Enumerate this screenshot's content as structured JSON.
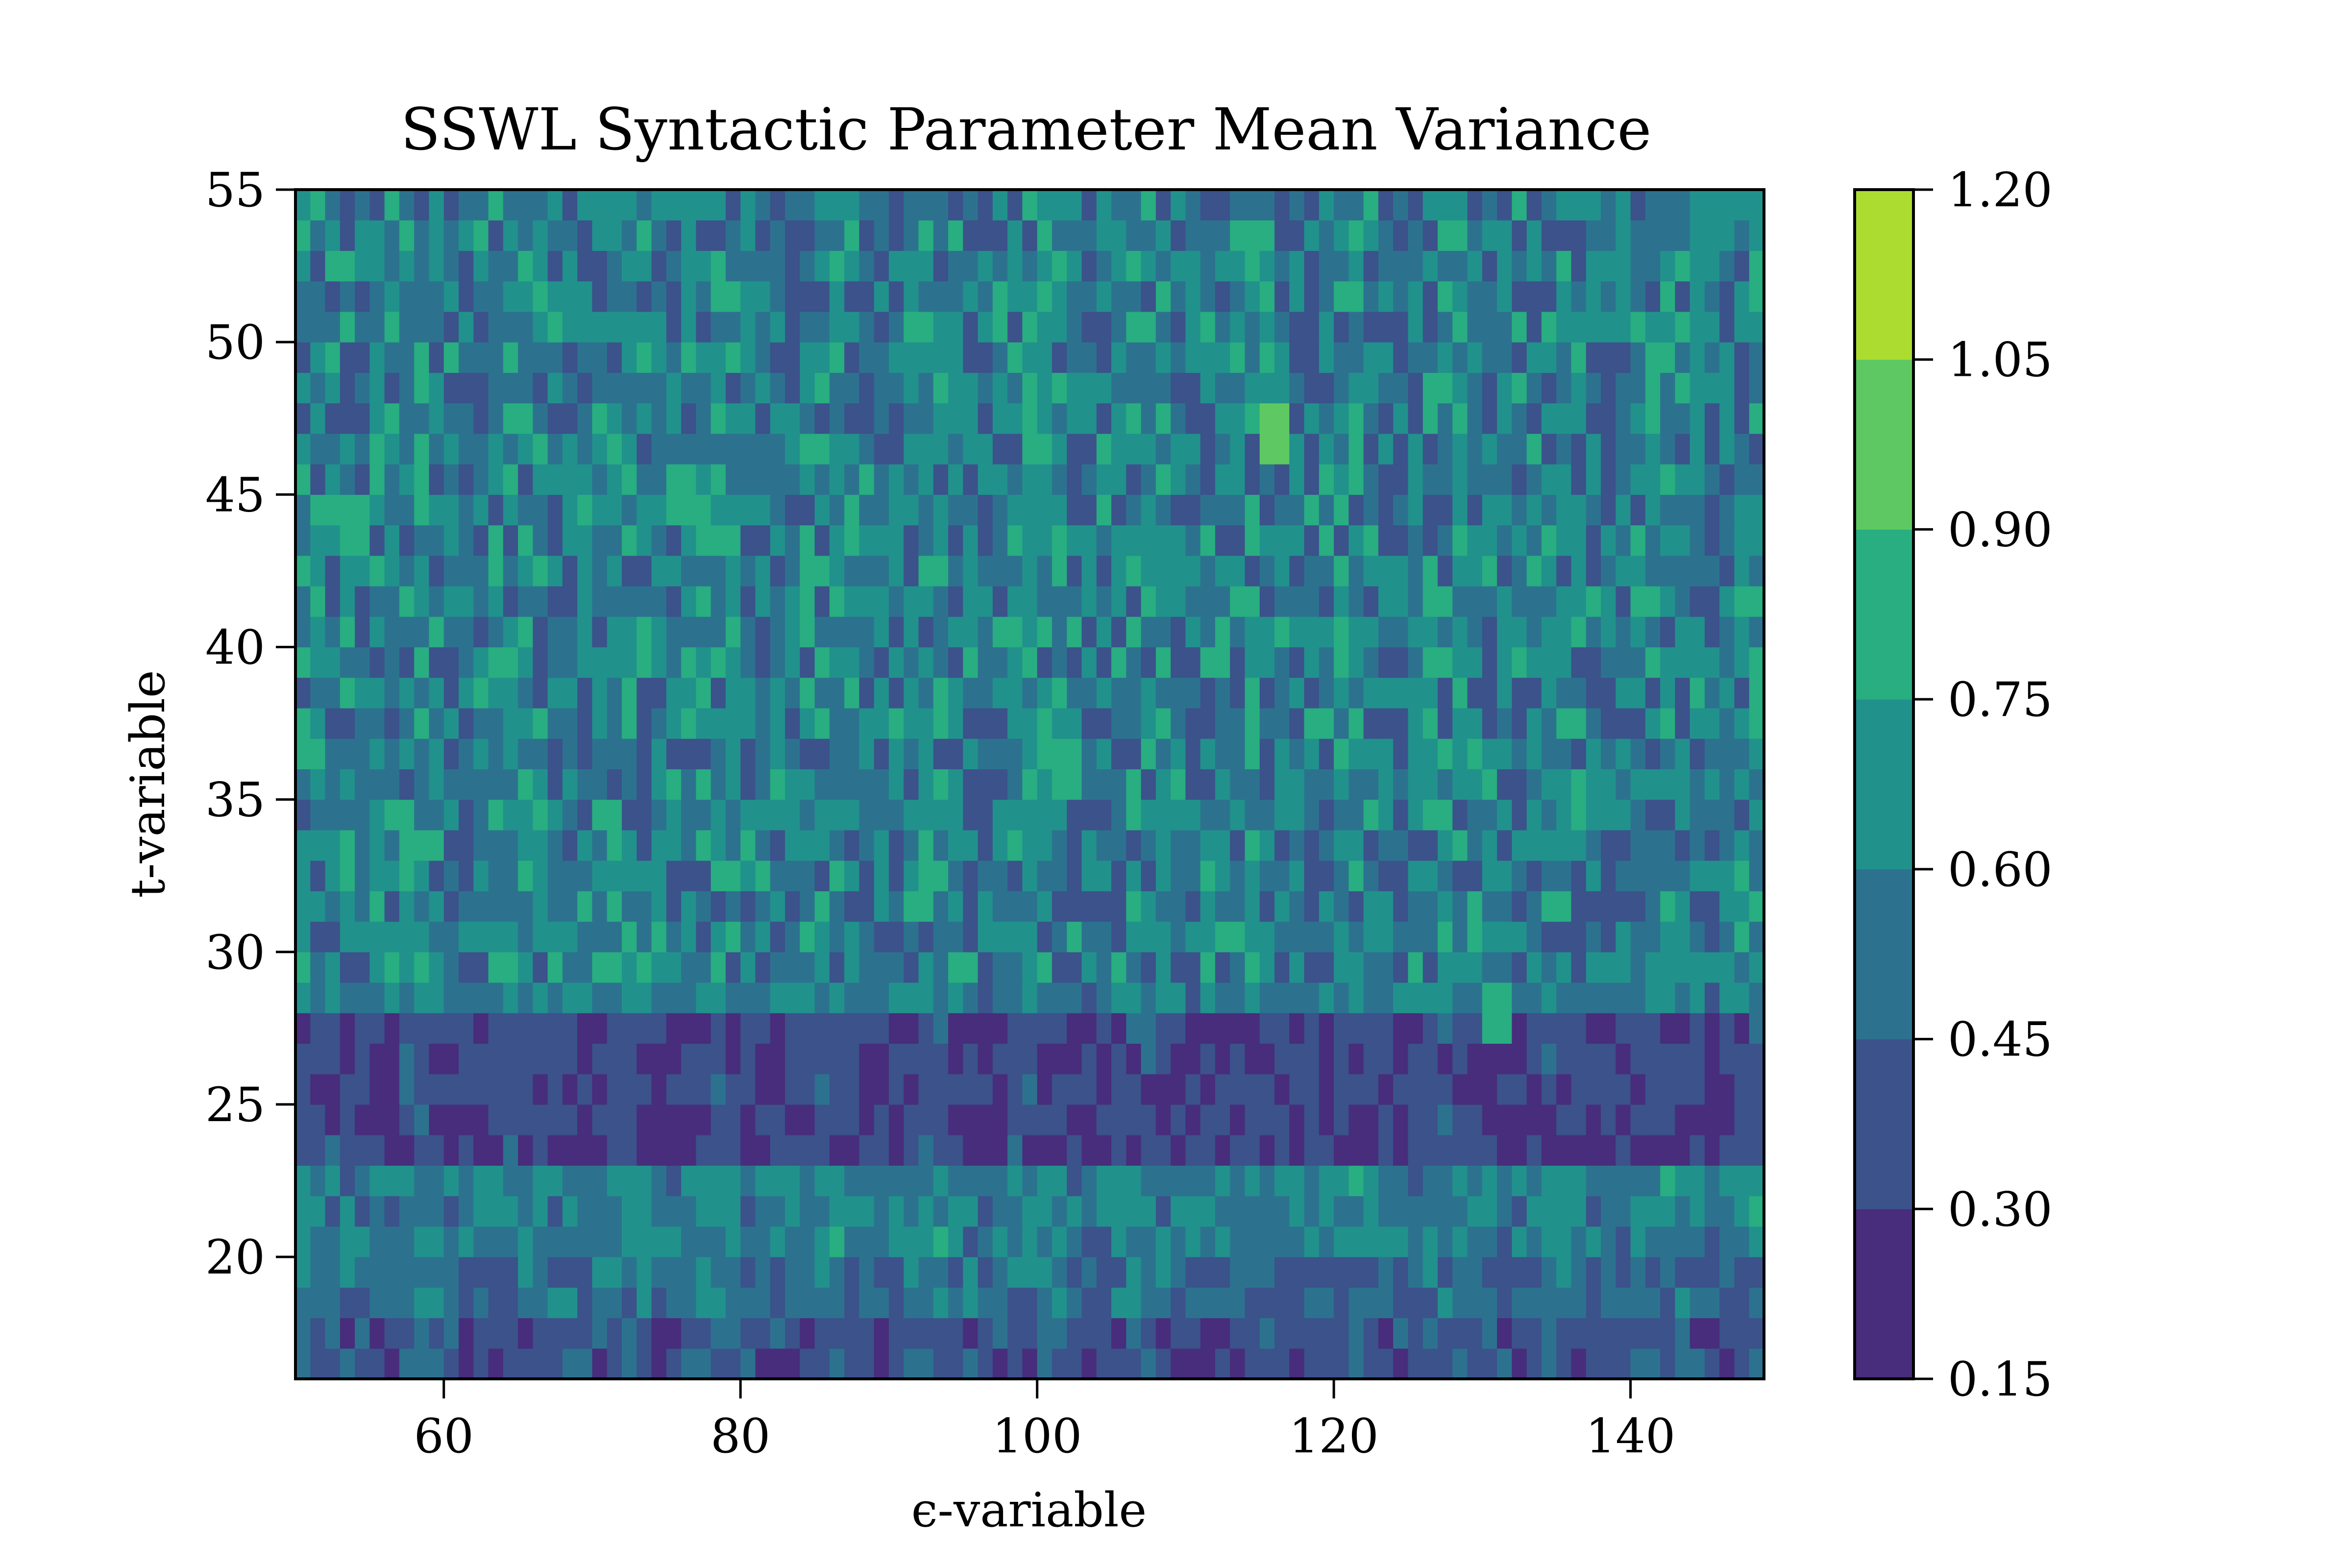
{
  "chart_data": {
    "type": "heatmap",
    "subtype": "filled-contour",
    "title": "SSWL Syntactic Parameter Mean Variance",
    "xlabel": "ϵ-variable",
    "ylabel": "t-variable",
    "xlim": [
      50,
      149
    ],
    "ylim": [
      16,
      55
    ],
    "x_ticks": [
      60,
      80,
      100,
      120,
      140
    ],
    "y_ticks": [
      20,
      25,
      30,
      35,
      40,
      45,
      50,
      55
    ],
    "colorbar": {
      "levels": [
        0.15,
        0.3,
        0.45,
        0.6,
        0.75,
        0.9,
        1.05,
        1.2
      ],
      "tick_labels": [
        "0.15",
        "0.30",
        "0.45",
        "0.60",
        "0.75",
        "0.90",
        "1.05",
        "1.20"
      ],
      "colors": [
        "#472d7b",
        "#3b528b",
        "#2c728e",
        "#21918c",
        "#28ae80",
        "#5ec962",
        "#addc30"
      ],
      "position": "right"
    },
    "grid": false,
    "bands": [
      {
        "y_range": [
          16,
          18
        ],
        "typical_value": 0.38
      },
      {
        "y_range": [
          18,
          20
        ],
        "typical_value": 0.5
      },
      {
        "y_range": [
          20,
          23.5
        ],
        "typical_value": 0.58
      },
      {
        "y_range": [
          23.5,
          28.5
        ],
        "typical_value": 0.33
      },
      {
        "y_range": [
          28.5,
          55
        ],
        "typical_value": 0.58
      }
    ],
    "hotspots": [
      {
        "x": 116,
        "y": 47,
        "value": 1.1
      },
      {
        "x": 76,
        "y": 45,
        "value": 1.0
      },
      {
        "x": 54,
        "y": 44,
        "value": 0.95
      },
      {
        "x": 102,
        "y": 36,
        "value": 0.95
      },
      {
        "x": 131,
        "y": 28,
        "value": 0.95
      },
      {
        "x": 95,
        "y": 29.5,
        "value": 0.9
      },
      {
        "x": 109,
        "y": 43,
        "value": 0.9
      },
      {
        "x": 136,
        "y": 44,
        "value": 0.9
      }
    ]
  }
}
